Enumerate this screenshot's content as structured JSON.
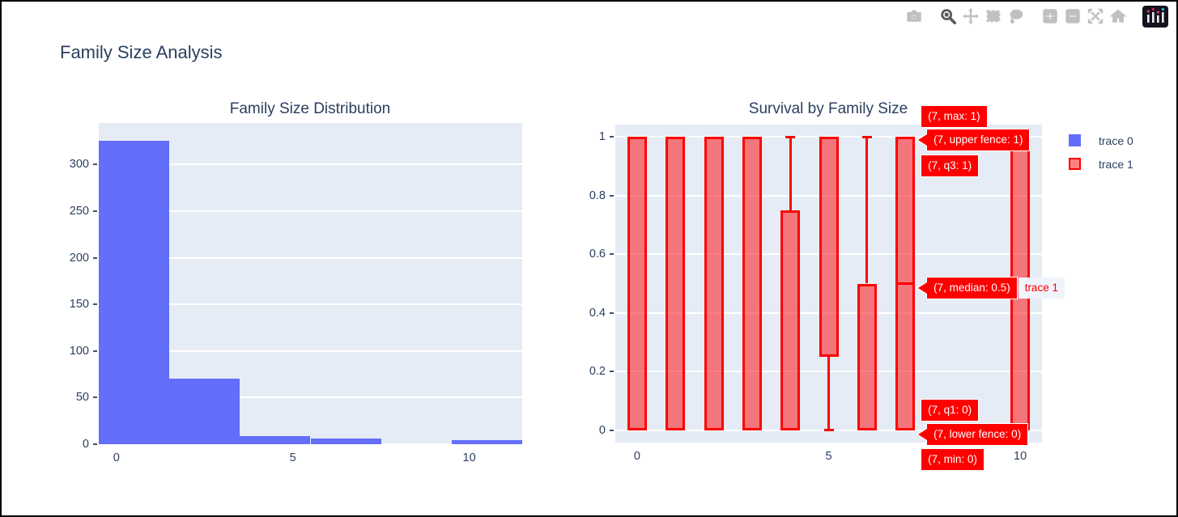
{
  "window": {
    "title": "Family Size Analysis"
  },
  "colors": {
    "text": "#2a3f5f",
    "plot_bg": "#e5ecf6",
    "grid": "#ffffff",
    "histogram_bar": "#636EFA",
    "box_line": "#FF0000",
    "box_fill": "rgba(255,0,0,0.5)",
    "hover_bg": "#FF0000",
    "hover_text": "#ffffff",
    "hover_suffix_bg": "#f0f3fa",
    "hover_suffix_text": "#FF0000"
  },
  "modebar": {
    "buttons": [
      {
        "name": "camera"
      },
      {
        "name": "zoom",
        "active": true
      },
      {
        "name": "pan"
      },
      {
        "name": "box-select"
      },
      {
        "name": "lasso-select"
      },
      {
        "name": "zoom-in"
      },
      {
        "name": "zoom-out"
      },
      {
        "name": "autoscale"
      },
      {
        "name": "reset-axes"
      },
      {
        "name": "plotly-logo"
      }
    ]
  },
  "legend": {
    "position": "top-right",
    "items": [
      {
        "label": "trace 0",
        "type": "histogram"
      },
      {
        "label": "trace 1",
        "type": "box"
      }
    ]
  },
  "chart_data": [
    {
      "type": "bar",
      "subtype": "histogram",
      "title": "Family Size Distribution",
      "xlabel": "",
      "ylabel": "",
      "xlim": [
        -0.5,
        11.5
      ],
      "ylim": [
        0,
        344.5
      ],
      "xticks": [
        0,
        5,
        10
      ],
      "yticks": [
        0,
        50,
        100,
        150,
        200,
        250,
        300
      ],
      "grid": "horizontal",
      "bins": [
        {
          "start": -0.5,
          "end": 1.5,
          "count": 325
        },
        {
          "start": 1.5,
          "end": 3.5,
          "count": 70
        },
        {
          "start": 3.5,
          "end": 5.5,
          "count": 9
        },
        {
          "start": 5.5,
          "end": 7.5,
          "count": 6
        },
        {
          "start": 7.5,
          "end": 9.5,
          "count": 0
        },
        {
          "start": 9.5,
          "end": 11.5,
          "count": 4
        }
      ]
    },
    {
      "type": "box",
      "title": "Survival by Family Size",
      "xlabel": "",
      "ylabel": "",
      "xlim": [
        -0.568,
        10.568
      ],
      "ylim": [
        -0.0415,
        1.0415
      ],
      "xticks": [
        0,
        5,
        10
      ],
      "yticks": [
        0,
        0.2,
        0.4,
        0.6,
        0.8,
        1
      ],
      "grid": "horizontal",
      "boxes": [
        {
          "x": 0,
          "min": 0,
          "q1": 0,
          "median": 0,
          "q3": 1,
          "max": 1
        },
        {
          "x": 1,
          "min": 0,
          "q1": 0,
          "median": 1,
          "q3": 1,
          "max": 1
        },
        {
          "x": 2,
          "min": 0,
          "q1": 0,
          "median": 1,
          "q3": 1,
          "max": 1
        },
        {
          "x": 3,
          "min": 0,
          "q1": 0,
          "median": 1,
          "q3": 1,
          "max": 1
        },
        {
          "x": 4,
          "min": 0,
          "q1": 0,
          "median": 0,
          "q3": 0.75,
          "max": 1
        },
        {
          "x": 5,
          "min": 0,
          "q1": 0.25,
          "median": 1,
          "q3": 1,
          "max": 1
        },
        {
          "x": 6,
          "min": 0,
          "q1": 0,
          "median": 0,
          "q3": 0.5,
          "max": 1
        },
        {
          "x": 7,
          "min": 0,
          "q1": 0,
          "median": 0.5,
          "q3": 1,
          "max": 1
        },
        {
          "x": 10,
          "min": 0,
          "q1": 0,
          "median": 0,
          "q3": 1,
          "max": 1
        }
      ]
    }
  ],
  "hover_labels": [
    {
      "stat": "max",
      "text": "(7, max: 1)",
      "arrow": false
    },
    {
      "stat": "upper_fence",
      "text": "(7, upper fence: 1)",
      "arrow": true
    },
    {
      "stat": "q3",
      "text": "(7, q3: 1)",
      "arrow": false
    },
    {
      "stat": "median",
      "text": "(7, median: 0.5)",
      "arrow": true,
      "suffix": "trace 1"
    },
    {
      "stat": "q1",
      "text": "(7, q1: 0)",
      "arrow": false
    },
    {
      "stat": "lower_fence",
      "text": "(7, lower fence: 0)",
      "arrow": true
    },
    {
      "stat": "min",
      "text": "(7, min: 0)",
      "arrow": false
    }
  ]
}
